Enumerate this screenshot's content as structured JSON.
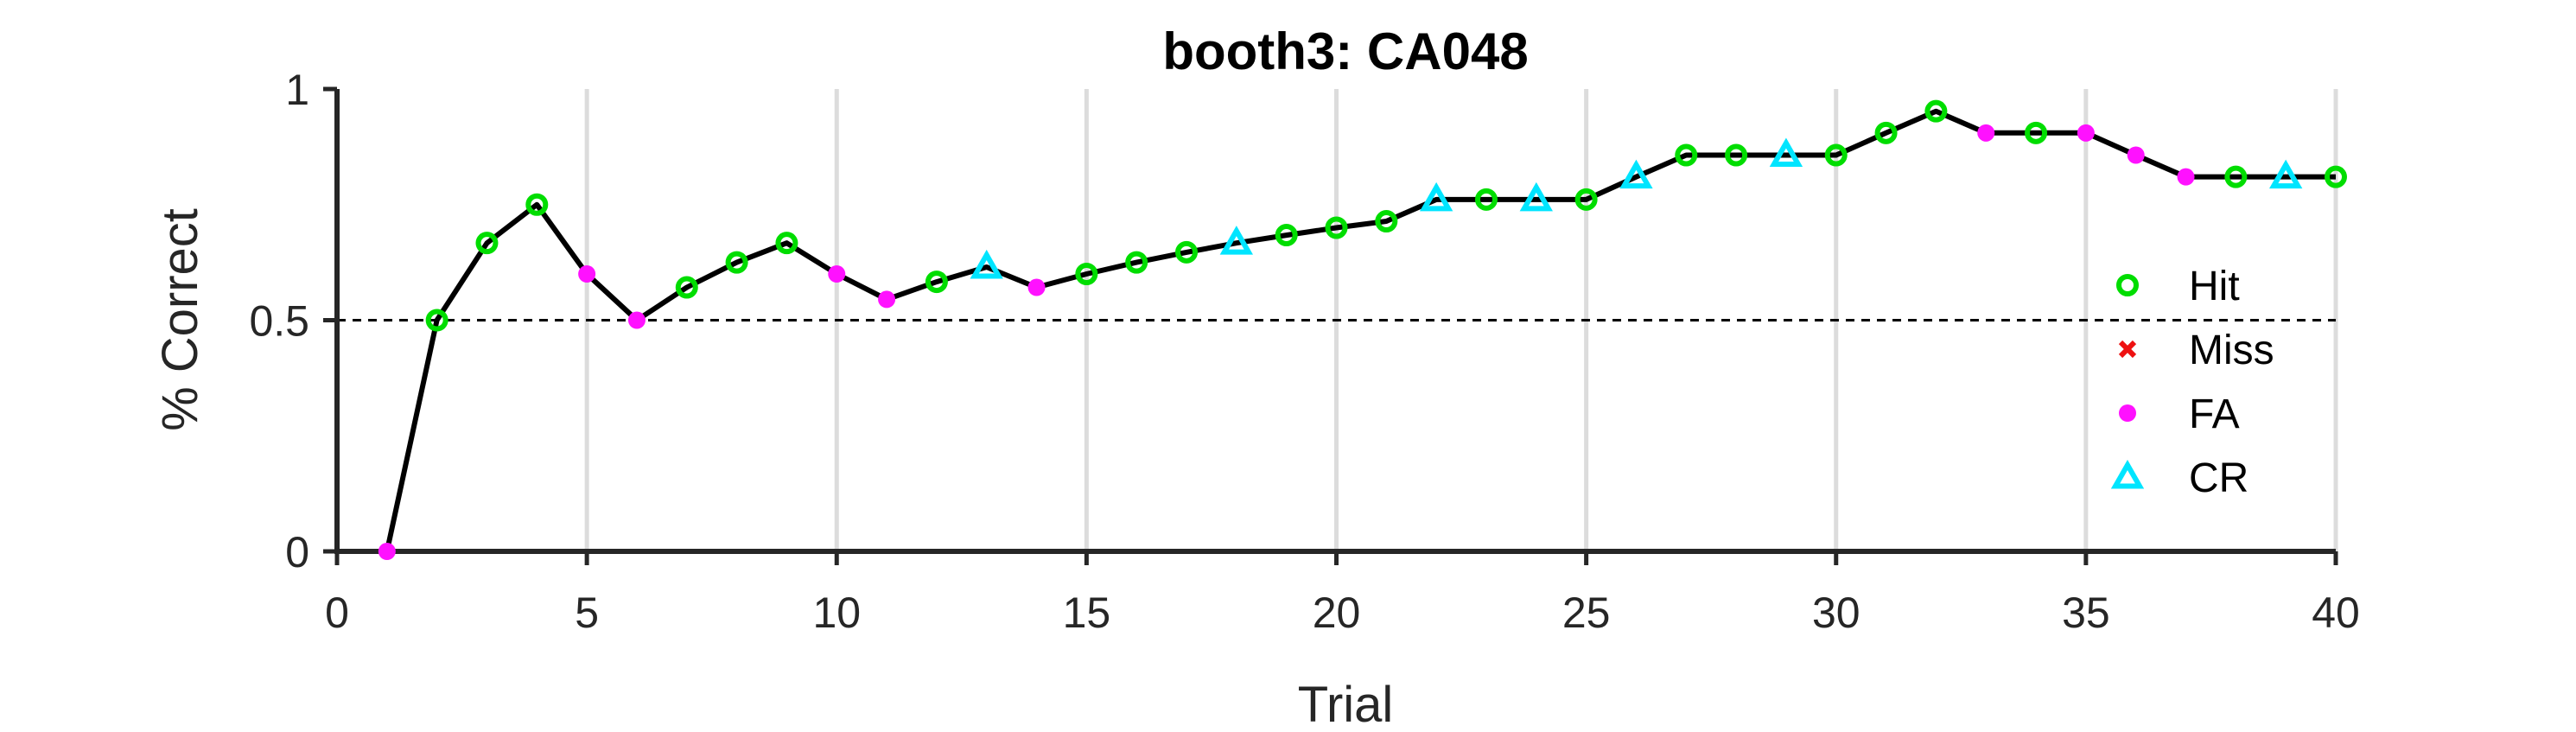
{
  "chart_data": {
    "type": "line",
    "title": "booth3: CA048",
    "xlabel": "Trial",
    "ylabel": "% Correct",
    "xlim": [
      0,
      40
    ],
    "ylim": [
      0,
      1
    ],
    "xticks": [
      0,
      5,
      10,
      15,
      20,
      25,
      30,
      35,
      40
    ],
    "yticks": [
      0,
      0.5,
      1
    ],
    "xtick_labels": [
      "0",
      "5",
      "10",
      "15",
      "20",
      "25",
      "30",
      "35",
      "40"
    ],
    "ytick_labels": [
      "0",
      "0.5",
      "1"
    ],
    "grid": "vertical",
    "reference_line": 0.5,
    "legend_position": "right",
    "line_color": "#000000",
    "series": [
      {
        "name": "Hit",
        "marker": "circle",
        "color": "#00dd00",
        "points": [
          [
            2,
            0.5
          ],
          [
            3,
            0.667
          ],
          [
            4,
            0.75
          ],
          [
            7,
            0.571
          ],
          [
            8,
            0.625
          ],
          [
            9,
            0.667
          ],
          [
            12,
            0.583
          ],
          [
            15,
            0.6
          ],
          [
            16,
            0.625
          ],
          [
            17,
            0.647
          ],
          [
            19,
            0.684
          ],
          [
            20,
            0.7
          ],
          [
            21,
            0.714
          ],
          [
            23,
            0.761
          ],
          [
            25,
            0.761
          ],
          [
            27,
            0.857
          ],
          [
            28,
            0.857
          ],
          [
            30,
            0.857
          ],
          [
            31,
            0.905
          ],
          [
            32,
            0.952
          ],
          [
            34,
            0.905
          ],
          [
            38,
            0.81
          ],
          [
            40,
            0.81
          ]
        ]
      },
      {
        "name": "Miss",
        "marker": "x",
        "color": "#ee1111",
        "points": []
      },
      {
        "name": "FA",
        "marker": "dot",
        "color": "#ff11ff",
        "points": [
          [
            1,
            0
          ],
          [
            5,
            0.6
          ],
          [
            6,
            0.5
          ],
          [
            10,
            0.6
          ],
          [
            11,
            0.545
          ],
          [
            14,
            0.571
          ],
          [
            33,
            0.905
          ],
          [
            35,
            0.905
          ],
          [
            36,
            0.857
          ],
          [
            37,
            0.81
          ]
        ]
      },
      {
        "name": "CR",
        "marker": "triangle",
        "color": "#00e5ff",
        "points": [
          [
            13,
            0.615
          ],
          [
            18,
            0.667
          ],
          [
            22,
            0.761
          ],
          [
            24,
            0.761
          ],
          [
            26,
            0.81
          ],
          [
            29,
            0.857
          ],
          [
            39,
            0.81
          ]
        ]
      }
    ],
    "line_values": [
      [
        1,
        0
      ],
      [
        2,
        0.5
      ],
      [
        3,
        0.667
      ],
      [
        4,
        0.75
      ],
      [
        5,
        0.6
      ],
      [
        6,
        0.5
      ],
      [
        7,
        0.571
      ],
      [
        8,
        0.625
      ],
      [
        9,
        0.667
      ],
      [
        10,
        0.6
      ],
      [
        11,
        0.545
      ],
      [
        12,
        0.583
      ],
      [
        13,
        0.615
      ],
      [
        14,
        0.571
      ],
      [
        15,
        0.6
      ],
      [
        16,
        0.625
      ],
      [
        17,
        0.647
      ],
      [
        18,
        0.667
      ],
      [
        19,
        0.684
      ],
      [
        20,
        0.7
      ],
      [
        21,
        0.714
      ],
      [
        22,
        0.761
      ],
      [
        23,
        0.761
      ],
      [
        24,
        0.761
      ],
      [
        25,
        0.761
      ],
      [
        26,
        0.81
      ],
      [
        27,
        0.857
      ],
      [
        28,
        0.857
      ],
      [
        29,
        0.857
      ],
      [
        30,
        0.857
      ],
      [
        31,
        0.905
      ],
      [
        32,
        0.952
      ],
      [
        33,
        0.905
      ],
      [
        34,
        0.905
      ],
      [
        35,
        0.905
      ],
      [
        36,
        0.857
      ],
      [
        37,
        0.81
      ],
      [
        38,
        0.81
      ],
      [
        39,
        0.81
      ],
      [
        40,
        0.81
      ]
    ]
  }
}
